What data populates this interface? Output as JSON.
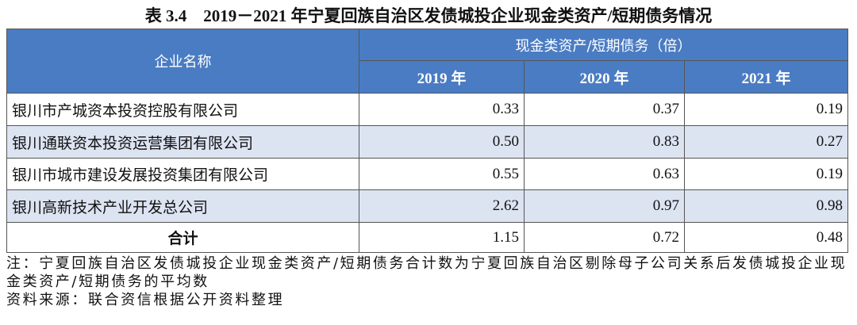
{
  "title": "表 3.4　2019－2021 年宁夏回族自治区发债城投企业现金类资产/短期债务情况",
  "table": {
    "header": {
      "name": "企业名称",
      "group": "现金类资产/短期债务（倍）",
      "years": [
        "2019 年",
        "2020 年",
        "2021 年"
      ]
    },
    "rows": [
      {
        "name": "银川市产城资本投资控股有限公司",
        "values": [
          "0.33",
          "0.37",
          "0.19"
        ]
      },
      {
        "name": "银川通联资本投资运营集团有限公司",
        "values": [
          "0.50",
          "0.83",
          "0.27"
        ]
      },
      {
        "name": "银川市城市建设发展投资集团有限公司",
        "values": [
          "0.55",
          "0.63",
          "0.19"
        ]
      },
      {
        "name": "银川高新技术产业开发总公司",
        "values": [
          "2.62",
          "0.97",
          "0.98"
        ]
      }
    ],
    "total": {
      "name": "合计",
      "values": [
        "1.15",
        "0.72",
        "0.48"
      ]
    }
  },
  "notes": [
    "注：宁夏回族自治区发债城投企业现金类资产/短期债务合计数为宁夏回族自治区剔除母子公司关系后发债城投企业现金类资产/短期债务的平均数",
    "资料来源：联合资信根据公开资料整理"
  ]
}
